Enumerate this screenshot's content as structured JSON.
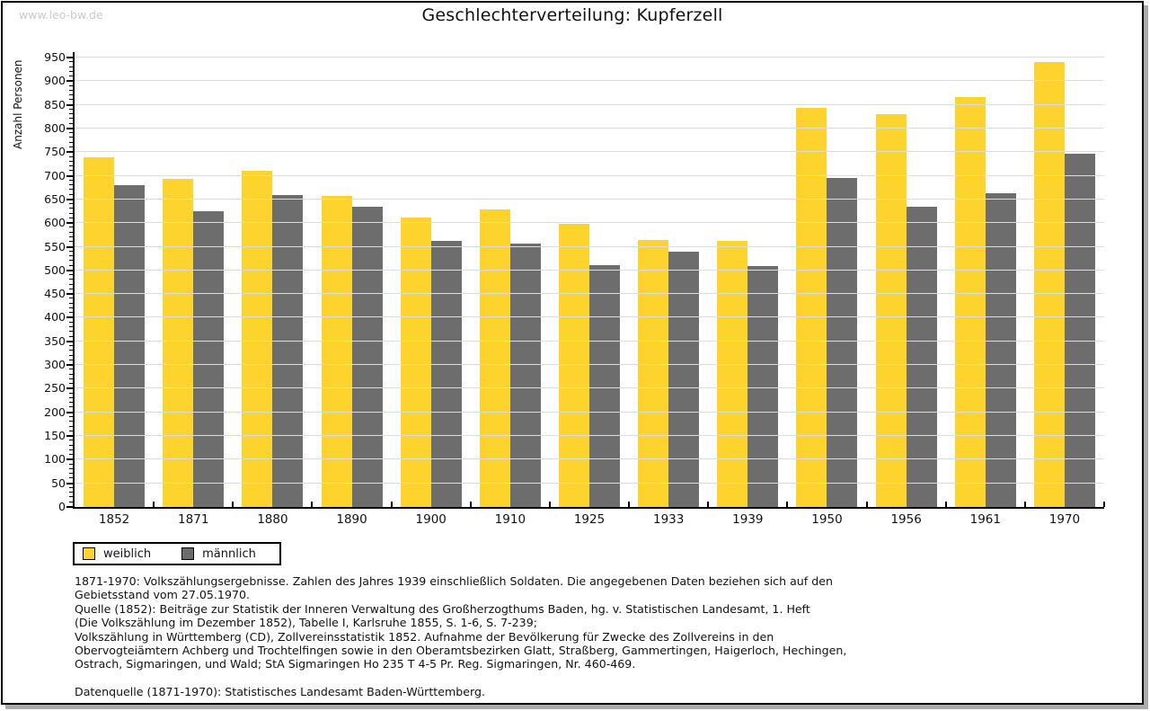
{
  "watermark": "www.leo-bw.de",
  "chart_data": {
    "type": "bar",
    "title": "Geschlechterverteilung: Kupferzell",
    "ylabel": "Anzahl Personen",
    "xlabel": "",
    "categories": [
      "1852",
      "1871",
      "1880",
      "1890",
      "1900",
      "1910",
      "1925",
      "1933",
      "1939",
      "1950",
      "1956",
      "1961",
      "1970"
    ],
    "series": [
      {
        "name": "weiblich",
        "color": "#FCD42D",
        "values": [
          740,
          693,
          711,
          657,
          612,
          629,
          599,
          565,
          562,
          843,
          831,
          866,
          941
        ]
      },
      {
        "name": "männlich",
        "color": "#6D6D6D",
        "values": [
          681,
          625,
          659,
          635,
          563,
          556,
          511,
          540,
          509,
          695,
          635,
          664,
          746
        ]
      }
    ],
    "ylim": [
      0,
      950
    ],
    "ytick_step": 50,
    "minor_tick_step": 10,
    "grid": "horizontal",
    "legend_position": "bottom-left"
  },
  "legend": {
    "items": [
      {
        "label": "weiblich",
        "swatch_color": "#FCD42D"
      },
      {
        "label": "männlich",
        "swatch_color": "#6D6D6D"
      }
    ]
  },
  "footer": {
    "lines": [
      "1871-1970: Volkszählungsergebnisse. Zahlen des Jahres 1939 einschließlich Soldaten. Die angegebenen Daten beziehen sich auf den",
      "Gebietsstand vom 27.05.1970.",
      "Quelle (1852): Beiträge zur Statistik der Inneren Verwaltung des Großherzogthums Baden, hg. v. Statistischen Landesamt, 1. Heft",
      "(Die Volkszählung im Dezember 1852), Tabelle I, Karlsruhe 1855, S. 1-6, S. 7-239;",
      "Volkszählung in Württemberg (CD), Zollvereinsstatistik 1852. Aufnahme der Bevölkerung für Zwecke des Zollvereins in den",
      "Obervogteiämtern Achberg und Trochtelfingen sowie in den Oberamtsbezirken Glatt, Straßberg, Gammertingen, Haigerloch, Hechingen,",
      "Ostrach, Sigmaringen, und Wald; StA Sigmaringen Ho 235 T 4-5 Pr. Reg. Sigmaringen, Nr. 460-469.",
      "",
      "Datenquelle (1871-1970): Statistisches Landesamt Baden-Württemberg."
    ]
  },
  "colors": {
    "female_bar": "#FCD42D",
    "male_bar": "#6D6D6D",
    "gridline": "#DCDCDC",
    "axis": "#000000",
    "watermark_text": "#C9C9C9"
  }
}
